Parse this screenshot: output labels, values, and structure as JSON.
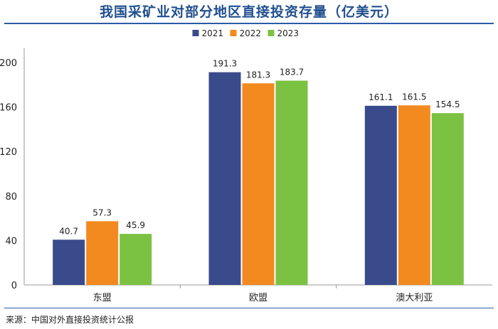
{
  "title": "我国采矿业对部分地区直接投资存量（亿美元）",
  "source": "来源：中国对外直接投资统计公报",
  "chart_data": {
    "type": "bar",
    "categories": [
      "东盟",
      "欧盟",
      "澳大利亚"
    ],
    "series": [
      {
        "name": "2021",
        "values": [
          40.7,
          191.3,
          161.1
        ],
        "labels": [
          "40.7",
          "191.3",
          "161.1"
        ],
        "color": "#3a4b8c"
      },
      {
        "name": "2022",
        "values": [
          57.3,
          181.3,
          161.5
        ],
        "labels": [
          "57.3",
          "181.3",
          "161.5"
        ],
        "color": "#f28a1f"
      },
      {
        "name": "2023",
        "values": [
          45.9,
          183.7,
          154.5
        ],
        "labels": [
          "45.9",
          "183.7",
          "154.5"
        ],
        "color": "#7cc242"
      }
    ],
    "ylim": [
      0,
      200
    ],
    "yticks": [
      0,
      40,
      80,
      120,
      160,
      200
    ],
    "legend": "top-center",
    "grid": false
  }
}
